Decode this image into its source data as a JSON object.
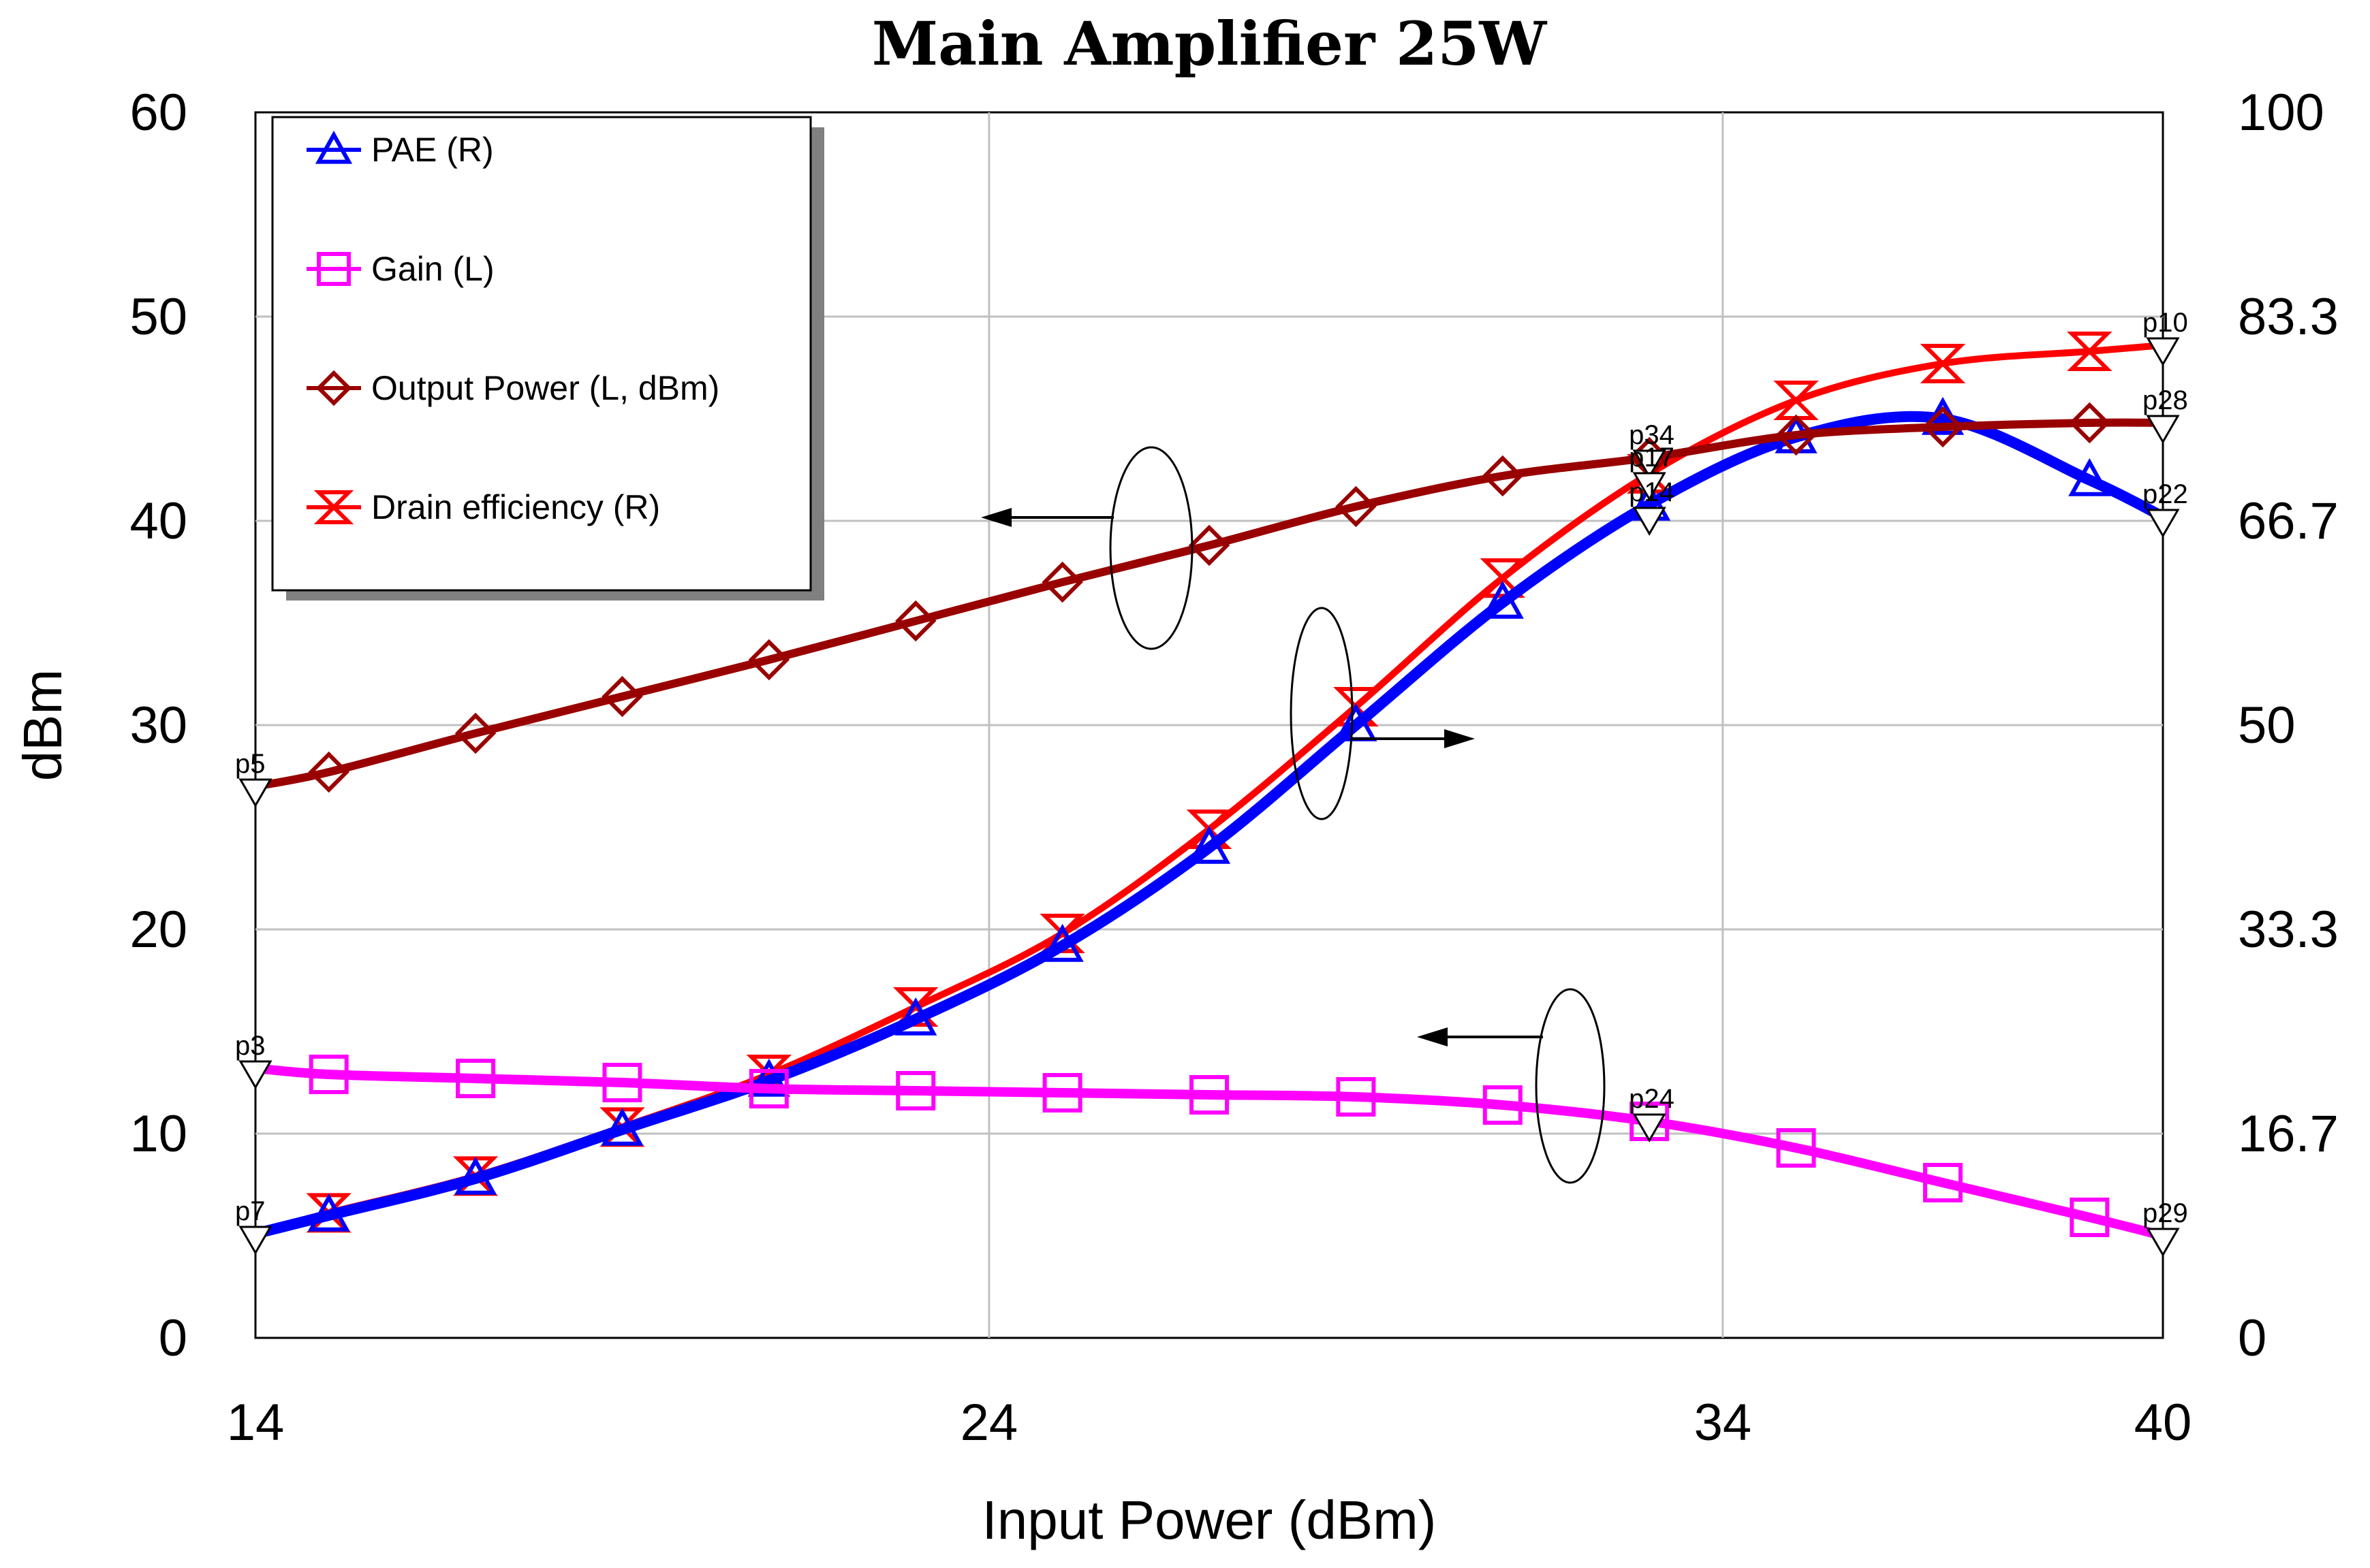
{
  "chart_data": {
    "type": "line",
    "title": "Main Amplifier 25W",
    "xlabel": "Input Power (dBm)",
    "ylabel": "dBm",
    "xlim": [
      14,
      40
    ],
    "ylim_left": [
      0,
      60
    ],
    "ylim_right": [
      0,
      100
    ],
    "x_ticks": [
      14,
      24,
      34,
      40
    ],
    "y_ticks_left": [
      0,
      10,
      20,
      30,
      40,
      50,
      60
    ],
    "y_ticks_right": [
      "0",
      "16.7",
      "33.3",
      "50",
      "66.7",
      "83.3",
      "100"
    ],
    "grid": true,
    "x": [
      14,
      15,
      17,
      19,
      21,
      23,
      25,
      27,
      29,
      31,
      33,
      35,
      37,
      39,
      40
    ],
    "series": [
      {
        "name": "PAE (R)",
        "axis": "right",
        "color": "#0000ff",
        "marker": "triangle",
        "values": [
          8.5,
          10,
          13,
          17,
          21,
          26,
          32,
          40,
          50,
          60,
          68,
          73.5,
          75,
          70,
          67
        ]
      },
      {
        "name": "Gain (L)",
        "axis": "left",
        "color": "#ff00ff",
        "marker": "square",
        "values": [
          13.2,
          12.9,
          12.7,
          12.5,
          12.2,
          12.1,
          12.0,
          11.9,
          11.8,
          11.4,
          10.6,
          9.3,
          7.6,
          5.9,
          5.0
        ]
      },
      {
        "name": "Output Power (L, dBm)",
        "axis": "left",
        "color": "#990000",
        "marker": "diamond",
        "values": [
          27.0,
          27.7,
          29.6,
          31.4,
          33.2,
          35.1,
          37.0,
          38.8,
          40.7,
          42.2,
          43.1,
          44.2,
          44.6,
          44.8,
          44.8
        ]
      },
      {
        "name": "Drain efficiency  (R)",
        "axis": "right",
        "color": "#ff0000",
        "marker": "hourglass",
        "values": [
          8.5,
          10.2,
          13.2,
          17.2,
          21.5,
          27,
          33,
          41.5,
          51.5,
          62,
          70.5,
          76.5,
          79.5,
          80.5,
          81
        ]
      }
    ],
    "marker_labels": [
      {
        "text": "p5",
        "x": 14,
        "y_left": 27.0
      },
      {
        "text": "p3",
        "x": 14,
        "y_left": 13.2
      },
      {
        "text": "p7",
        "x": 14,
        "y_left": 5.1
      },
      {
        "text": "p34",
        "x": 33,
        "y_left": 43.1
      },
      {
        "text": "p17",
        "x": 33,
        "y_left": 42.0
      },
      {
        "text": "p14",
        "x": 33,
        "y_left": 40.3
      },
      {
        "text": "p24",
        "x": 33,
        "y_left": 10.6
      },
      {
        "text": "p10",
        "x": 40,
        "y_left": 48.6
      },
      {
        "text": "p28",
        "x": 40,
        "y_left": 44.8
      },
      {
        "text": "p22",
        "x": 40,
        "y_left": 40.2
      },
      {
        "text": "p29",
        "x": 40,
        "y_left": 5.0
      }
    ],
    "annotations": [
      "left-arrow output power",
      "right-arrow PAE/Drain efficiency",
      "left-arrow gain"
    ]
  }
}
